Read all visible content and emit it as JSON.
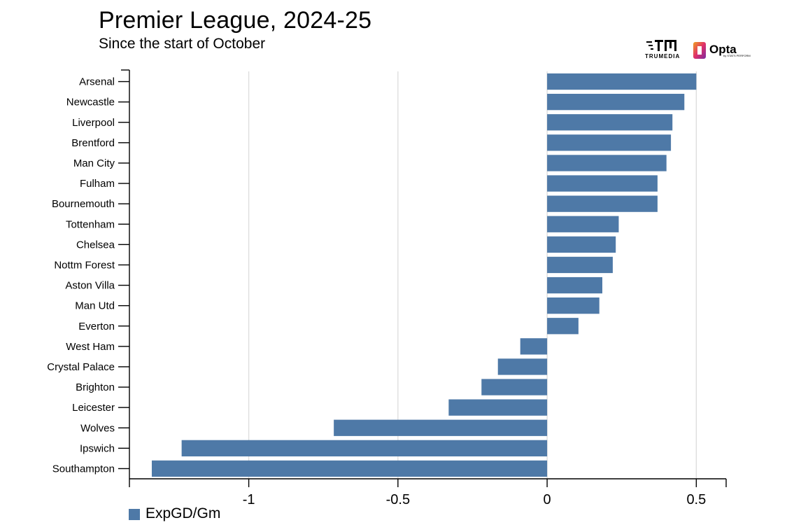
{
  "header": {
    "title": "Premier League, 2024-25",
    "subtitle": "Since the start of October"
  },
  "logos": {
    "trumedia_text": "TRUMEDIA",
    "opta_text": "Opta",
    "opta_tag": "by STATS PERFORM"
  },
  "legend": {
    "label": "ExpGD/Gm",
    "color": "#4e79a7"
  },
  "chart_data": {
    "type": "bar",
    "orientation": "horizontal",
    "categories": [
      "Arsenal",
      "Newcastle",
      "Liverpool",
      "Brentford",
      "Man City",
      "Fulham",
      "Bournemouth",
      "Tottenham",
      "Chelsea",
      "Nottm Forest",
      "Aston Villa",
      "Man Utd",
      "Everton",
      "West Ham",
      "Crystal Palace",
      "Brighton",
      "Leicester",
      "Wolves",
      "Ipswich",
      "Southampton"
    ],
    "series": [
      {
        "name": "ExpGD/Gm",
        "color": "#4e79a7",
        "values": [
          0.5,
          0.46,
          0.42,
          0.415,
          0.4,
          0.37,
          0.37,
          0.24,
          0.23,
          0.22,
          0.185,
          0.175,
          0.105,
          -0.09,
          -0.165,
          -0.22,
          -0.33,
          -0.715,
          -1.225,
          -1.325
        ]
      }
    ],
    "xlim": [
      -1.4,
      0.6
    ],
    "xticks": [
      -1,
      -0.5,
      0,
      0.5
    ],
    "xtick_labels": [
      "-1",
      "-0.5",
      "0",
      "0.5"
    ],
    "grid": "vertical",
    "legend_position": "bottom-left",
    "xlabel": "",
    "ylabel": ""
  }
}
